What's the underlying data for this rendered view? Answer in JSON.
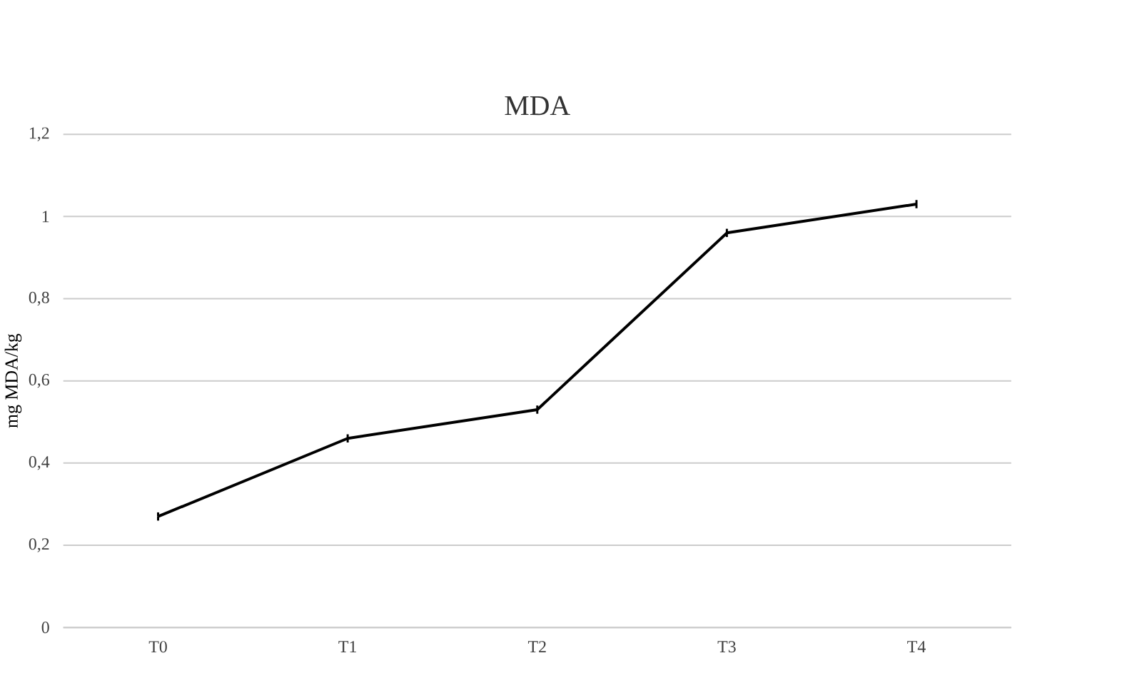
{
  "chart_data": {
    "type": "line",
    "title": "MDA",
    "ylabel": "mg  MDA/kg",
    "categories": [
      "T0",
      "T1",
      "T2",
      "T3",
      "T4"
    ],
    "series": [
      {
        "color": "#000000",
        "values": [
          0.27,
          0.46,
          0.53,
          0.96,
          1.03
        ],
        "errors": [
          0.01,
          0.01,
          0.01,
          0.01,
          0.01
        ]
      }
    ],
    "ylim": [
      0,
      1.2
    ],
    "yticks": [
      0,
      {
        "value": 0.2,
        "label": "0,2"
      },
      {
        "value": 0.4,
        "label": "0,4"
      },
      {
        "value": 0.6,
        "label": "0,6"
      },
      {
        "value": 0.8,
        "label": "0,8"
      },
      1,
      {
        "value": 1.2,
        "label": "1,2"
      }
    ],
    "grid": "y",
    "marker": "none",
    "line_style": "solid"
  }
}
